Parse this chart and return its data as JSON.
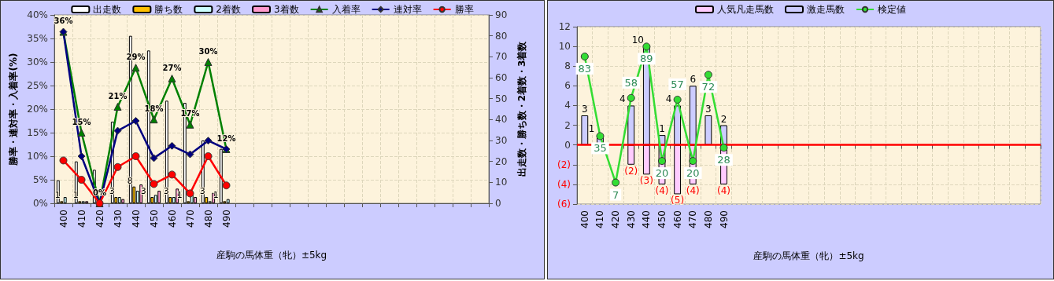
{
  "chart_data": [
    {
      "type": "bar",
      "xlabel": "産駒の馬体重（牝）±5kg",
      "ylabel": "勝率・連対率・入着率(%)",
      "y2label": "出走数・勝ち数・2着数・3着数",
      "categories": [
        "400",
        "410",
        "420",
        "430",
        "440",
        "450",
        "460",
        "470",
        "480",
        "490",
        null,
        null,
        null,
        null,
        null,
        null,
        null,
        null,
        null,
        null,
        null,
        null,
        null,
        null
      ],
      "series": [
        {
          "name": "出走数",
          "axis": "y2",
          "color": "#ffffff",
          "values": [
            11,
            20,
            16,
            39,
            80,
            73,
            49,
            48,
            30,
            26,
            null,
            null,
            null,
            null,
            null,
            null,
            null,
            null,
            null,
            null,
            null,
            null,
            null,
            null
          ]
        },
        {
          "name": "勝ち数",
          "axis": "y2",
          "color": "#ffc000",
          "values": [
            1,
            1,
            null,
            3,
            8,
            3,
            3,
            1,
            3,
            1,
            null,
            null,
            null,
            null,
            null,
            null,
            null,
            null,
            null,
            null,
            null,
            null,
            null,
            null
          ],
          "value_labels": [
            "1",
            "1",
            null,
            "3",
            "8",
            "3",
            "3",
            "1",
            "3",
            "1",
            null,
            null,
            null,
            null,
            null,
            null,
            null,
            null,
            null,
            null,
            null,
            null,
            null,
            null
          ]
        },
        {
          "name": "2着数",
          "axis": "y2",
          "color": "#ccffff",
          "values": [
            3,
            1,
            null,
            3,
            6,
            4,
            3,
            4,
            1,
            2,
            null,
            null,
            null,
            null,
            null,
            null,
            null,
            null,
            null,
            null,
            null,
            null,
            null,
            null
          ]
        },
        {
          "name": "3着数",
          "axis": "y2",
          "color": "#ff99cc",
          "values": [
            null,
            1,
            null,
            2,
            9,
            6,
            7,
            3,
            5,
            null,
            null,
            null,
            null,
            null,
            null,
            null,
            null,
            null,
            null,
            null,
            null,
            null,
            null,
            null
          ]
        },
        {
          "name": "入着率",
          "type": "line",
          "color": "#008000",
          "marker": "triangle",
          "values": [
            36.4,
            15,
            0,
            20.5,
            28.8,
            17.8,
            26.5,
            16.7,
            30,
            11.5,
            null,
            null,
            null,
            null,
            null,
            null,
            null,
            null,
            null,
            null,
            null,
            null,
            null,
            null
          ],
          "value_labels": [
            "36%",
            "15%",
            "0%",
            "21%",
            "29%",
            "18%",
            "27%",
            "17%",
            "30%",
            "12%",
            null,
            null,
            null,
            null,
            null,
            null,
            null,
            null,
            null,
            null,
            null,
            null,
            null,
            null
          ]
        },
        {
          "name": "連対率",
          "type": "line",
          "color": "#000080",
          "marker": "diamond",
          "values": [
            36.4,
            10,
            0,
            15.4,
            17.5,
            9.6,
            12.2,
            10.4,
            13.3,
            11.5,
            null,
            null,
            null,
            null,
            null,
            null,
            null,
            null,
            null,
            null,
            null,
            null,
            null,
            null
          ]
        },
        {
          "name": "勝率",
          "type": "line",
          "color": "#ff0000",
          "marker": "circle",
          "values": [
            9.1,
            5,
            0,
            7.7,
            10,
            4.1,
            6.1,
            2.1,
            10,
            3.8,
            null,
            null,
            null,
            null,
            null,
            null,
            null,
            null,
            null,
            null,
            null,
            null,
            null,
            null
          ]
        }
      ],
      "ylim": [
        0,
        40
      ],
      "yticks": [
        {
          "value": 0,
          "label": "0%"
        },
        {
          "value": 5,
          "label": "5%"
        },
        {
          "value": 10,
          "label": "10%"
        },
        {
          "value": 15,
          "label": "15%"
        },
        {
          "value": 20,
          "label": "20%"
        },
        {
          "value": 25,
          "label": "25%"
        },
        {
          "value": 30,
          "label": "30%"
        },
        {
          "value": 35,
          "label": "35%"
        },
        {
          "value": 40,
          "label": "40%"
        }
      ],
      "y2lim": [
        0,
        90
      ],
      "y2ticks": [
        0,
        10,
        20,
        30,
        40,
        50,
        60,
        70,
        80,
        90
      ],
      "grid": true,
      "legend": "top"
    },
    {
      "type": "bar",
      "xlabel": "産駒の馬体重（牝）±5kg",
      "categories": [
        "400",
        "410",
        "420",
        "430",
        "440",
        "450",
        "460",
        "470",
        "480",
        "490",
        null,
        null,
        null,
        null,
        null,
        null,
        null,
        null,
        null,
        null,
        null,
        null,
        null,
        null,
        null,
        null,
        null,
        null,
        null,
        null
      ],
      "series": [
        {
          "name": "人気凡走馬数",
          "color": "#ffccff",
          "values": [
            null,
            null,
            null,
            -2,
            -3,
            -4,
            -5,
            -4,
            null,
            -4,
            null,
            null,
            null,
            null,
            null,
            null,
            null,
            null,
            null,
            null,
            null,
            null,
            null,
            null,
            null,
            null,
            null,
            null,
            null,
            null
          ],
          "value_labels": [
            null,
            null,
            null,
            "(2)",
            "(3)",
            "(4)",
            "(5)",
            "(4)",
            null,
            "(4)",
            null,
            null,
            null,
            null,
            null,
            null,
            null,
            null,
            null,
            null,
            null,
            null,
            null,
            null,
            null,
            null,
            null,
            null,
            null,
            null
          ]
        },
        {
          "name": "激走馬数",
          "color": "#ccccff",
          "values": [
            3,
            1,
            null,
            4,
            10,
            1,
            4,
            6,
            3,
            2,
            null,
            null,
            null,
            null,
            null,
            null,
            null,
            null,
            null,
            null,
            null,
            null,
            null,
            null,
            null,
            null,
            null,
            null,
            null,
            null
          ],
          "value_labels": [
            "3",
            "1",
            null,
            "4",
            "10",
            "1",
            "4",
            "6",
            "3",
            "2",
            null,
            null,
            null,
            null,
            null,
            null,
            null,
            null,
            null,
            null,
            null,
            null,
            null,
            null,
            null,
            null,
            null,
            null,
            null,
            null
          ]
        },
        {
          "name": "検定値",
          "type": "line",
          "axis": "y2",
          "color": "#33dd33",
          "marker": "circle",
          "values": [
            83,
            35,
            7,
            58,
            89,
            20,
            57,
            20,
            72,
            28,
            null,
            null,
            null,
            null,
            null,
            null,
            null,
            null,
            null,
            null,
            null,
            null,
            null,
            null,
            null,
            null,
            null,
            null,
            null,
            null
          ],
          "data_labels": true
        }
      ],
      "stacked": true,
      "ylim": [
        -6,
        12
      ],
      "yticks": [
        {
          "value": -6,
          "label": "(6)"
        },
        {
          "value": -4,
          "label": "(4)"
        },
        {
          "value": -2,
          "label": "(2)"
        },
        0,
        2,
        4,
        6,
        8,
        10,
        12
      ],
      "y2lim": [
        -6,
        101
      ],
      "ref_lines": [
        {
          "axis": "y",
          "value": 0,
          "color": "#ff0000"
        }
      ],
      "grid": true,
      "legend": "top"
    }
  ]
}
